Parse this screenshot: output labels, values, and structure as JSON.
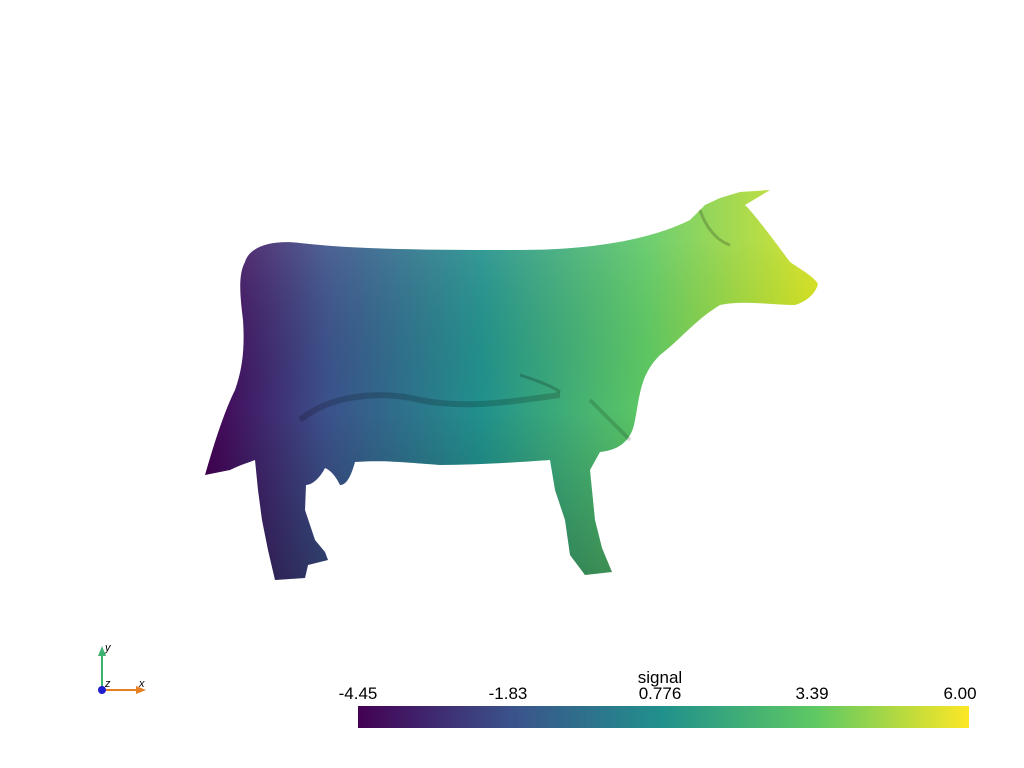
{
  "scalar_bar": {
    "title": "signal",
    "ticks": [
      "-4.45",
      "-1.83",
      "0.776",
      "3.39",
      "6.00"
    ],
    "min": -4.45,
    "max": 6.0,
    "colormap": "viridis",
    "colors": [
      "#440154",
      "#3b528b",
      "#21918c",
      "#5ec962",
      "#fde725"
    ]
  },
  "axes": {
    "x_label": "x",
    "y_label": "y",
    "z_label": "z",
    "x_color": "#e67e22",
    "y_color": "#3cb371",
    "z_color": "#1f1fd0"
  },
  "scene": {
    "object": "cow mesh",
    "background": "#ffffff"
  }
}
